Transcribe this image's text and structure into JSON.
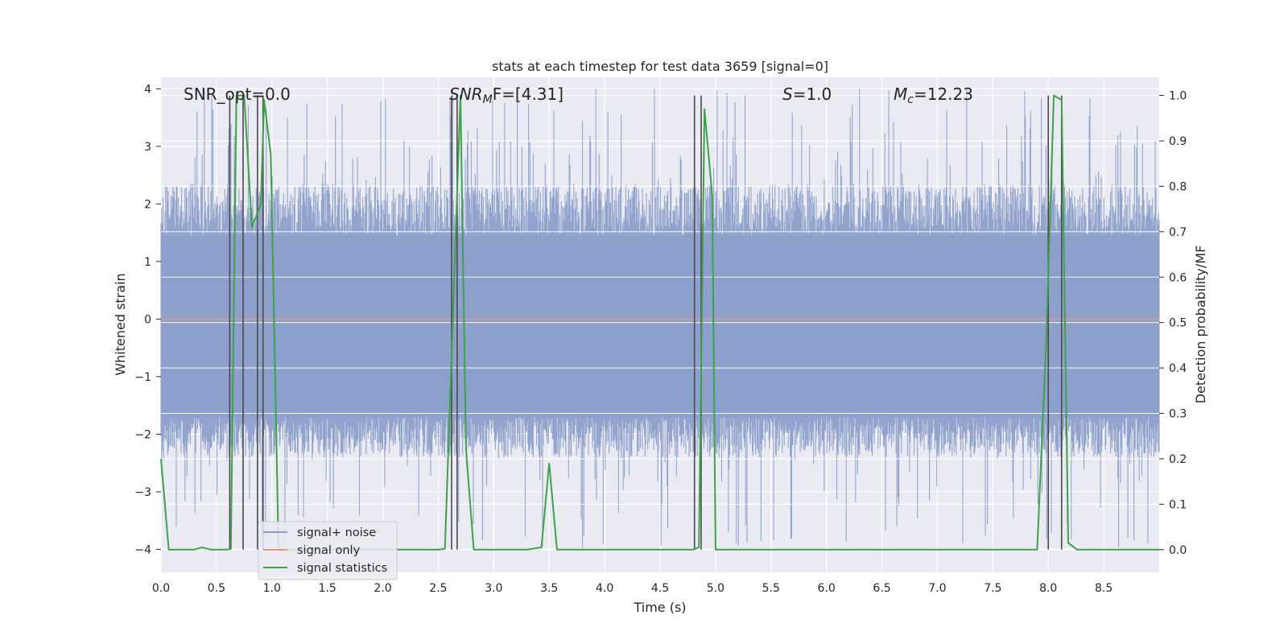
{
  "chart_data": {
    "type": "line",
    "title": "stats at each timestep for test data 3659 [signal=0]",
    "xlabel": "Time (s)",
    "ylabel_left": "Whitened strain",
    "ylabel_right": "Detection probability/MF",
    "xlim": [
      0,
      9.0
    ],
    "ylim_left": [
      -4.4,
      4.2
    ],
    "ylim_right": [
      -0.05,
      1.04
    ],
    "x_ticks": [
      "0.0",
      "0.5",
      "1.0",
      "1.5",
      "2.0",
      "2.5",
      "3.0",
      "3.5",
      "4.0",
      "4.5",
      "5.0",
      "5.5",
      "6.0",
      "6.5",
      "7.0",
      "7.5",
      "8.0",
      "8.5"
    ],
    "y_ticks_left": [
      "−4",
      "−3",
      "−2",
      "−1",
      "0",
      "1",
      "2",
      "3",
      "4"
    ],
    "y_ticks_right": [
      "0.0",
      "0.1",
      "0.2",
      "0.3",
      "0.4",
      "0.5",
      "0.6",
      "0.7",
      "0.8",
      "0.9",
      "1.0"
    ],
    "grid": true,
    "legend_placement": "lower-left",
    "annotations": {
      "snr_opt": "SNR_opt=0.0",
      "snr_mf_main": "SNR",
      "snr_mf_sub": "M",
      "snr_mf_tail": "F=[4.31]",
      "s_main": "S",
      "s_tail": "=1.0",
      "mc_main": "M",
      "mc_sub": "c",
      "mc_tail": "=12.23"
    },
    "series": [
      {
        "name": "signal+ noise",
        "color": "#8da0cb",
        "axis": "left",
        "kind": "noise",
        "band_low": -1.7,
        "band_high": 1.45,
        "max_abs": 4.0
      },
      {
        "name": "signal only",
        "color": "#e9967a",
        "axis": "left",
        "x": [
          0,
          9.0
        ],
        "y": [
          0,
          0
        ]
      },
      {
        "name": "signal statistics",
        "color": "#3fa24a",
        "axis": "right",
        "x": [
          0.0,
          0.07,
          0.15,
          0.3,
          0.37,
          0.45,
          0.6,
          0.63,
          0.68,
          0.75,
          0.82,
          0.9,
          0.93,
          0.99,
          1.06,
          1.2,
          1.5,
          2.0,
          2.5,
          2.56,
          2.63,
          2.7,
          2.75,
          2.82,
          3.0,
          3.3,
          3.43,
          3.5,
          3.57,
          3.7,
          4.0,
          4.5,
          4.8,
          4.85,
          4.9,
          4.97,
          5.0,
          5.5,
          6.0,
          6.5,
          7.0,
          7.5,
          7.9,
          7.98,
          8.05,
          8.12,
          8.18,
          8.26,
          8.5,
          9.0
        ],
        "y": [
          0.2,
          0.0,
          0.0,
          0.0,
          0.005,
          0.0,
          0.0,
          0.002,
          1.0,
          1.0,
          0.71,
          0.76,
          0.99,
          0.87,
          0.0,
          0.0,
          0.0,
          0.0,
          0.0,
          0.002,
          0.5,
          1.0,
          0.22,
          0.0,
          0.0,
          0.0,
          0.005,
          0.19,
          0.0,
          0.0,
          0.0,
          0.0,
          0.0,
          0.005,
          0.97,
          0.78,
          0.0,
          0.0,
          0.0,
          0.0,
          0.0,
          0.0,
          0.0,
          0.45,
          1.0,
          0.99,
          0.015,
          0.0,
          0.0,
          0.0
        ]
      }
    ],
    "vertical_markers": {
      "color": "#4a4a4a",
      "x": [
        0.62,
        0.74,
        0.87,
        0.92,
        2.62,
        2.67,
        4.81,
        4.87,
        8.0,
        8.12
      ],
      "top": 1.0
    }
  }
}
